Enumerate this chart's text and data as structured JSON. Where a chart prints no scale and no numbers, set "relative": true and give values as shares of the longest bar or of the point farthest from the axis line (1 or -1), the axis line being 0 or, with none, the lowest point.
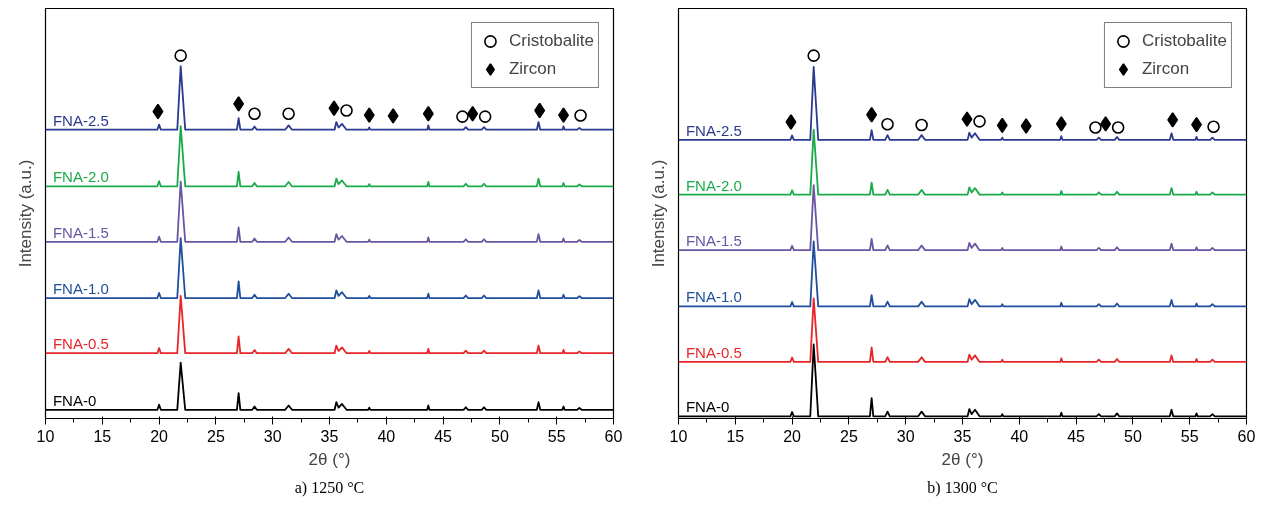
{
  "chart_data": [
    {
      "type": "line",
      "relative": true,
      "xlabel": "2θ (°)",
      "ylabel": "Intensity (a.u.)",
      "annotations": [
        "a) 1250 °C"
      ],
      "xlim": [
        10,
        60
      ],
      "xticks": [
        10,
        15,
        20,
        25,
        30,
        35,
        40,
        45,
        50,
        55,
        60
      ],
      "legend": "top right",
      "grid": false,
      "tick_labels": "x",
      "x": [
        10,
        19.85,
        20.0,
        20.15,
        21.6,
        21.9,
        22.3,
        26.85,
        27.0,
        27.15,
        28.2,
        28.4,
        28.6,
        31.1,
        31.4,
        31.7,
        35.45,
        35.6,
        35.8,
        36.1,
        36.5,
        38.4,
        38.5,
        38.6,
        43.6,
        43.7,
        43.8,
        46.8,
        47.0,
        47.2,
        48.4,
        48.6,
        48.8,
        53.25,
        53.4,
        53.55,
        55.5,
        55.6,
        55.7,
        56.8,
        57.0,
        57.2,
        60
      ],
      "series": [
        {
          "name": "FNA-0",
          "color": "#000000",
          "values": [
            0.024,
            0.024,
            0.038,
            0.024,
            0.024,
            0.154,
            0.024,
            0.024,
            0.07,
            0.024,
            0.024,
            0.033,
            0.024,
            0.024,
            0.036,
            0.024,
            0.024,
            0.045,
            0.03,
            0.04,
            0.024,
            0.024,
            0.03,
            0.024,
            0.024,
            0.036,
            0.024,
            0.024,
            0.031,
            0.024,
            0.024,
            0.031,
            0.024,
            0.024,
            0.045,
            0.024,
            0.024,
            0.033,
            0.024,
            0.024,
            0.029,
            0.024,
            0.024
          ]
        },
        {
          "name": "FNA-0.5",
          "color": "#e8262a",
          "values": [
            0.18,
            0.18,
            0.194,
            0.18,
            0.18,
            0.338,
            0.18,
            0.18,
            0.226,
            0.18,
            0.18,
            0.189,
            0.18,
            0.18,
            0.192,
            0.18,
            0.18,
            0.201,
            0.186,
            0.196,
            0.18,
            0.18,
            0.186,
            0.18,
            0.18,
            0.192,
            0.18,
            0.18,
            0.187,
            0.18,
            0.18,
            0.187,
            0.18,
            0.18,
            0.201,
            0.18,
            0.18,
            0.189,
            0.18,
            0.18,
            0.185,
            0.18,
            0.18
          ]
        },
        {
          "name": "FNA-1.0",
          "color": "#1f4e9c",
          "values": [
            0.332,
            0.332,
            0.346,
            0.332,
            0.332,
            0.497,
            0.332,
            0.332,
            0.378,
            0.332,
            0.332,
            0.341,
            0.332,
            0.332,
            0.344,
            0.332,
            0.332,
            0.353,
            0.338,
            0.348,
            0.332,
            0.332,
            0.338,
            0.332,
            0.332,
            0.344,
            0.332,
            0.332,
            0.339,
            0.332,
            0.332,
            0.339,
            0.332,
            0.332,
            0.353,
            0.332,
            0.332,
            0.341,
            0.332,
            0.332,
            0.337,
            0.332,
            0.332
          ]
        },
        {
          "name": "FNA-1.5",
          "color": "#6a55a3",
          "values": [
            0.487,
            0.487,
            0.501,
            0.487,
            0.487,
            0.653,
            0.487,
            0.487,
            0.527,
            0.487,
            0.487,
            0.496,
            0.487,
            0.487,
            0.499,
            0.487,
            0.487,
            0.508,
            0.493,
            0.503,
            0.487,
            0.487,
            0.493,
            0.487,
            0.487,
            0.499,
            0.487,
            0.487,
            0.494,
            0.487,
            0.487,
            0.494,
            0.487,
            0.487,
            0.508,
            0.487,
            0.487,
            0.496,
            0.487,
            0.487,
            0.492,
            0.487,
            0.487
          ]
        },
        {
          "name": "FNA-2.0",
          "color": "#1aaa4a",
          "values": [
            0.64,
            0.64,
            0.654,
            0.64,
            0.64,
            0.806,
            0.64,
            0.64,
            0.68,
            0.64,
            0.64,
            0.649,
            0.64,
            0.64,
            0.652,
            0.64,
            0.64,
            0.661,
            0.646,
            0.656,
            0.64,
            0.64,
            0.646,
            0.64,
            0.64,
            0.652,
            0.64,
            0.64,
            0.647,
            0.64,
            0.64,
            0.647,
            0.64,
            0.64,
            0.661,
            0.64,
            0.64,
            0.649,
            0.64,
            0.64,
            0.645,
            0.64,
            0.64
          ]
        },
        {
          "name": "FNA-2.5",
          "color": "#2b3990",
          "values": [
            0.796,
            0.796,
            0.81,
            0.796,
            0.796,
            0.971,
            0.796,
            0.796,
            0.828,
            0.796,
            0.796,
            0.805,
            0.796,
            0.796,
            0.808,
            0.796,
            0.796,
            0.817,
            0.802,
            0.812,
            0.796,
            0.796,
            0.802,
            0.796,
            0.796,
            0.808,
            0.796,
            0.796,
            0.803,
            0.796,
            0.796,
            0.803,
            0.796,
            0.796,
            0.817,
            0.796,
            0.796,
            0.805,
            0.796,
            0.796,
            0.801,
            0.796,
            0.796
          ]
        },
        {
          "name": "Cristobalite",
          "type": "scatter",
          "marker": "circle",
          "color": "#000000",
          "x": [
            21.9,
            28.4,
            31.4,
            36.5,
            46.7,
            48.7,
            57.1
          ],
          "values": [
            1.0,
            0.84,
            0.84,
            0.849,
            0.832,
            0.832,
            0.835
          ]
        },
        {
          "name": "Zircon",
          "type": "scatter",
          "marker": "diamond",
          "color": "#000000",
          "x": [
            19.9,
            27.0,
            35.4,
            38.5,
            40.6,
            43.7,
            47.6,
            53.5,
            55.6
          ],
          "values": [
            0.846,
            0.867,
            0.855,
            0.836,
            0.834,
            0.84,
            0.84,
            0.849,
            0.836
          ]
        }
      ]
    },
    {
      "type": "line",
      "relative": true,
      "xlabel": "2θ (°)",
      "ylabel": "Intensity (a.u.)",
      "annotations": [
        "b) 1300 °C"
      ],
      "xlim": [
        10,
        60
      ],
      "xticks": [
        10,
        15,
        20,
        25,
        30,
        35,
        40,
        45,
        50,
        55,
        60
      ],
      "legend": "top right",
      "grid": false,
      "tick_labels": "x",
      "x": [
        10,
        19.85,
        20.0,
        20.15,
        21.6,
        21.9,
        22.3,
        26.85,
        27.0,
        27.15,
        28.2,
        28.4,
        28.6,
        31.1,
        31.4,
        31.7,
        35.45,
        35.6,
        35.8,
        36.1,
        36.5,
        38.4,
        38.5,
        38.6,
        43.6,
        43.7,
        43.8,
        46.8,
        47.0,
        47.2,
        48.4,
        48.6,
        48.8,
        53.25,
        53.4,
        53.55,
        55.5,
        55.6,
        55.7,
        56.8,
        57.0,
        57.2,
        60
      ],
      "series": [
        {
          "name": "FNA-0",
          "color": "#000000",
          "values": [
            0.006,
            0.006,
            0.018,
            0.006,
            0.006,
            0.204,
            0.006,
            0.006,
            0.056,
            0.006,
            0.006,
            0.019,
            0.006,
            0.006,
            0.019,
            0.006,
            0.006,
            0.026,
            0.012,
            0.024,
            0.006,
            0.006,
            0.012,
            0.006,
            0.006,
            0.016,
            0.006,
            0.006,
            0.012,
            0.006,
            0.006,
            0.014,
            0.006,
            0.006,
            0.024,
            0.006,
            0.006,
            0.014,
            0.006,
            0.006,
            0.012,
            0.006,
            0.006
          ]
        },
        {
          "name": "FNA-0.5",
          "color": "#e8262a",
          "values": [
            0.156,
            0.156,
            0.168,
            0.156,
            0.156,
            0.331,
            0.156,
            0.156,
            0.196,
            0.156,
            0.156,
            0.169,
            0.156,
            0.156,
            0.169,
            0.156,
            0.156,
            0.176,
            0.162,
            0.174,
            0.156,
            0.156,
            0.162,
            0.156,
            0.156,
            0.166,
            0.156,
            0.156,
            0.162,
            0.156,
            0.156,
            0.164,
            0.156,
            0.156,
            0.174,
            0.156,
            0.156,
            0.164,
            0.156,
            0.156,
            0.162,
            0.156,
            0.156
          ]
        },
        {
          "name": "FNA-1.0",
          "color": "#1f4e9c",
          "values": [
            0.309,
            0.309,
            0.321,
            0.309,
            0.309,
            0.488,
            0.309,
            0.309,
            0.34,
            0.309,
            0.309,
            0.322,
            0.309,
            0.309,
            0.322,
            0.309,
            0.309,
            0.329,
            0.315,
            0.327,
            0.309,
            0.309,
            0.315,
            0.309,
            0.309,
            0.319,
            0.309,
            0.309,
            0.315,
            0.309,
            0.309,
            0.317,
            0.309,
            0.309,
            0.327,
            0.309,
            0.309,
            0.317,
            0.309,
            0.309,
            0.315,
            0.309,
            0.309
          ]
        },
        {
          "name": "FNA-1.5",
          "color": "#6a55a3",
          "values": [
            0.464,
            0.464,
            0.476,
            0.464,
            0.464,
            0.643,
            0.464,
            0.464,
            0.495,
            0.464,
            0.464,
            0.477,
            0.464,
            0.464,
            0.477,
            0.464,
            0.464,
            0.484,
            0.47,
            0.482,
            0.464,
            0.464,
            0.47,
            0.464,
            0.464,
            0.474,
            0.464,
            0.464,
            0.47,
            0.464,
            0.464,
            0.472,
            0.464,
            0.464,
            0.482,
            0.464,
            0.464,
            0.472,
            0.464,
            0.464,
            0.47,
            0.464,
            0.464
          ]
        },
        {
          "name": "FNA-2.0",
          "color": "#1aaa4a",
          "values": [
            0.617,
            0.617,
            0.629,
            0.617,
            0.617,
            0.796,
            0.617,
            0.617,
            0.65,
            0.617,
            0.617,
            0.63,
            0.617,
            0.617,
            0.63,
            0.617,
            0.617,
            0.637,
            0.623,
            0.635,
            0.617,
            0.617,
            0.623,
            0.617,
            0.617,
            0.627,
            0.617,
            0.617,
            0.623,
            0.617,
            0.617,
            0.625,
            0.617,
            0.617,
            0.635,
            0.617,
            0.617,
            0.625,
            0.617,
            0.617,
            0.623,
            0.617,
            0.617
          ]
        },
        {
          "name": "FNA-2.5",
          "color": "#2b3990",
          "values": [
            0.768,
            0.768,
            0.78,
            0.768,
            0.768,
            0.969,
            0.768,
            0.768,
            0.795,
            0.768,
            0.768,
            0.781,
            0.768,
            0.768,
            0.781,
            0.768,
            0.768,
            0.788,
            0.774,
            0.786,
            0.768,
            0.768,
            0.774,
            0.768,
            0.768,
            0.778,
            0.768,
            0.768,
            0.774,
            0.768,
            0.768,
            0.776,
            0.768,
            0.768,
            0.786,
            0.768,
            0.768,
            0.776,
            0.768,
            0.768,
            0.774,
            0.768,
            0.768
          ]
        },
        {
          "name": "Cristobalite",
          "type": "scatter",
          "marker": "circle",
          "color": "#000000",
          "x": [
            21.9,
            28.4,
            31.4,
            36.5,
            46.7,
            48.7,
            57.1
          ],
          "values": [
            1.0,
            0.811,
            0.809,
            0.819,
            0.802,
            0.802,
            0.804
          ]
        },
        {
          "name": "Zircon",
          "type": "scatter",
          "marker": "diamond",
          "color": "#000000",
          "x": [
            19.9,
            27.0,
            35.4,
            38.5,
            40.6,
            43.7,
            47.6,
            53.5,
            55.6
          ],
          "values": [
            0.817,
            0.837,
            0.825,
            0.808,
            0.806,
            0.812,
            0.812,
            0.823,
            0.81
          ]
        }
      ]
    }
  ]
}
